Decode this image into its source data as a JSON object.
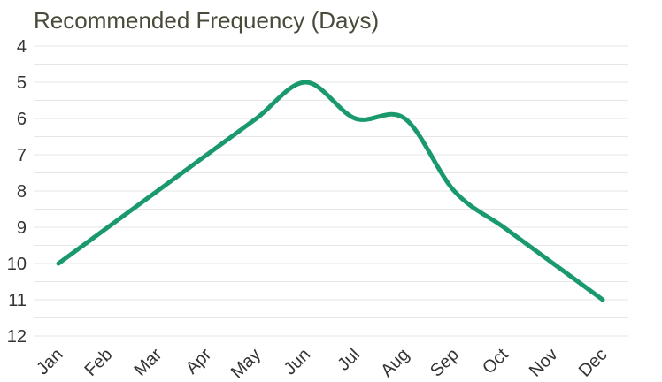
{
  "chart_data": {
    "type": "line",
    "title": "Recommended Frequency (Days)",
    "xlabel": "",
    "ylabel": "",
    "categories": [
      "Jan",
      "Feb",
      "Mar",
      "Apr",
      "May",
      "Jun",
      "Jul",
      "Aug",
      "Sep",
      "Oct",
      "Nov",
      "Dec"
    ],
    "series": [
      {
        "values": [
          10,
          9,
          8,
          7,
          6,
          5,
          6,
          6,
          8,
          9,
          10,
          11
        ],
        "color": "#1a9a6c"
      }
    ],
    "ylim": [
      4,
      12
    ],
    "y_axis_inverted": true,
    "y_ticks": [
      4,
      5,
      6,
      7,
      8,
      9,
      10,
      11,
      12
    ],
    "grid": true,
    "grid_color": "#e6e6e6",
    "smooth": true,
    "legend": "none"
  }
}
